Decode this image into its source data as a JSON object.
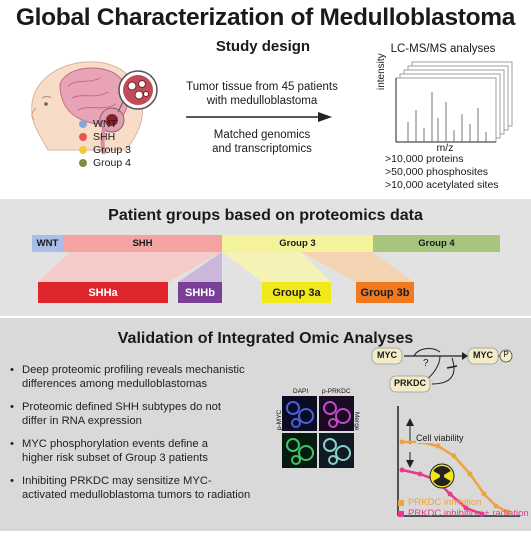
{
  "title": "Global Characterization of Medulloblastoma",
  "study_design": {
    "heading": "Study design",
    "tissue_line1": "Tumor tissue from 45 patients",
    "tissue_line2": "with medulloblastoma",
    "matched_line1": "Matched genomics",
    "matched_line2": "and transcriptomics"
  },
  "legend": {
    "items": [
      {
        "label": "WNT",
        "color": "#8aa6d6"
      },
      {
        "label": "SHH",
        "color": "#e0574f"
      },
      {
        "label": "Group 3",
        "color": "#f2c93a"
      },
      {
        "label": "Group 4",
        "color": "#7a8f3f"
      }
    ]
  },
  "lcms": {
    "heading": "LC-MS/MS analyses",
    "y_label": "intensity",
    "x_label": "m/z",
    "results": [
      ">10,000 proteins",
      ">50,000 phosphosites",
      ">10,000 acetylated sites"
    ]
  },
  "patient_groups": {
    "heading": "Patient groups based on proteomics data",
    "bars": [
      {
        "label": "WNT",
        "color": "#a9bde6"
      },
      {
        "label": "SHH",
        "color": "#f3a3a0"
      },
      {
        "label": "Group 3",
        "color": "#f4f39a"
      },
      {
        "label": "Group 4",
        "color": "#a8c57f"
      }
    ],
    "subgroups": [
      {
        "label": "SHHa",
        "color": "#e0262d",
        "text_color": "#ffffff"
      },
      {
        "label": "SHHb",
        "color": "#7a3f96",
        "text_color": "#ffffff"
      },
      {
        "label": "Group 3a",
        "color": "#f0ea1d",
        "text_color": "#1a1a1a"
      },
      {
        "label": "Group 3b",
        "color": "#f07a22",
        "text_color": "#1a1a1a"
      }
    ]
  },
  "validation": {
    "heading": "Validation of Integrated Omic Analyses",
    "bullets": [
      [
        "Deep proteomic profiling reveals mechanistic",
        "differences among medulloblastomas"
      ],
      [
        "Proteomic defined SHH subtypes do not",
        "differ in RNA expression"
      ],
      [
        "MYC phosphorylation events define a",
        "higher risk subset of Group 3 patients"
      ],
      [
        "Inhibiting PRKDC may sensitize MYC-",
        "activated medulloblastoma tumors to radiation"
      ]
    ],
    "micrograph": {
      "dapi": "DAPI",
      "prkdc": "p-PRKDC",
      "myc": "p-MYC",
      "merge": "Merge"
    },
    "pathway": {
      "myc": "MYC",
      "question": "?",
      "myc_p": "MYC",
      "p": "P",
      "prkdc": "PRKDC"
    },
    "plot": {
      "ylabel": "Cell viability",
      "legend": [
        "PRKDC inhibition",
        "PRKDC inhibition + radiation"
      ],
      "colors": [
        "#f2a23a",
        "#e83a8c"
      ]
    }
  }
}
